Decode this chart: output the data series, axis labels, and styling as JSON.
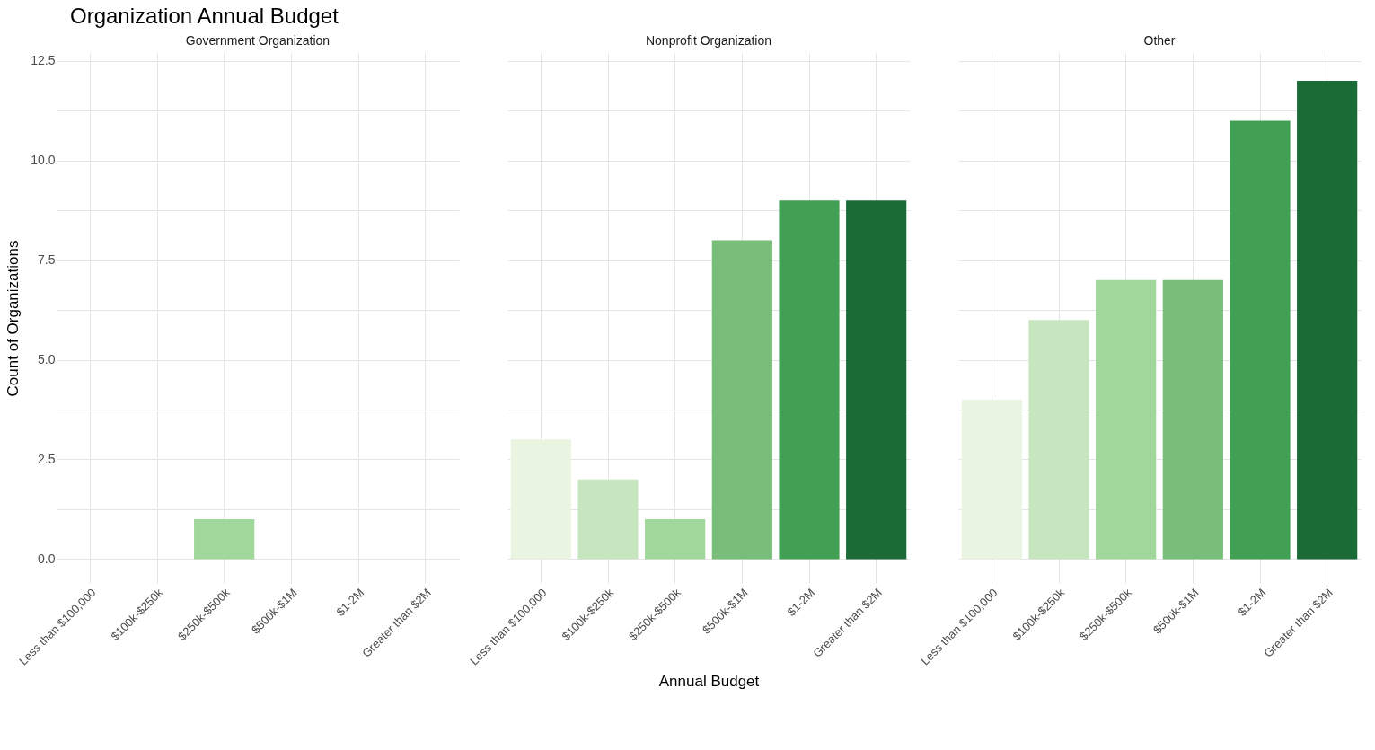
{
  "chart_data": [
    {
      "type": "bar",
      "title": "Organization Annual Budget",
      "subtitle": "Government Organization",
      "ylabel": "Count of Organizations",
      "categories": [
        "Less than $100,000",
        "$100k-$250k",
        "$250k-$500k",
        "$500k-$1M",
        "$1-2M",
        "Greater than $2M"
      ],
      "values": [
        null,
        null,
        1,
        null,
        null,
        null
      ],
      "colors": [
        "#e9f5e1",
        "#c7e6bf",
        "#a0d79a",
        "#78be78",
        "#42a055",
        "#1b6b36"
      ],
      "ylim": [
        -0.6,
        12.7
      ],
      "yticks": [
        {
          "value": 0,
          "label": "0.0"
        },
        {
          "value": 1.25,
          "label": null
        },
        2.5,
        {
          "value": 3.75,
          "label": null
        },
        {
          "value": 5,
          "label": "5.0"
        },
        {
          "value": 6.25,
          "label": null
        },
        7.5,
        {
          "value": 8.75,
          "label": null
        },
        {
          "value": 10,
          "label": "10.0"
        },
        {
          "value": 11.25,
          "label": null
        },
        12.5
      ],
      "grid": true
    },
    {
      "type": "bar",
      "subtitle": "Nonprofit Organization",
      "xlabel": "Annual Budget",
      "categories": [
        "Less than $100,000",
        "$100k-$250k",
        "$250k-$500k",
        "$500k-$1M",
        "$1-2M",
        "Greater than $2M"
      ],
      "values": [
        3,
        2,
        1,
        8,
        9,
        9
      ],
      "colors": [
        "#e9f5e1",
        "#c7e6bf",
        "#a0d79a",
        "#78be78",
        "#42a055",
        "#1b6b36"
      ],
      "ylim": [
        -0.6,
        12.7
      ],
      "yticks": [
        0,
        1.25,
        2.5,
        3.75,
        5,
        6.25,
        7.5,
        8.75,
        10,
        11.25,
        12.5
      ],
      "grid": true,
      "tick_labels": "x"
    },
    {
      "type": "bar",
      "subtitle": "Other",
      "categories": [
        "Less than $100,000",
        "$100k-$250k",
        "$250k-$500k",
        "$500k-$1M",
        "$1-2M",
        "Greater than $2M"
      ],
      "values": [
        4,
        6,
        7,
        7,
        11,
        12
      ],
      "colors": [
        "#e9f5e1",
        "#c7e6bf",
        "#a0d79a",
        "#78be78",
        "#42a055",
        "#1b6b36"
      ],
      "ylim": [
        -0.6,
        12.7
      ],
      "yticks": [
        0,
        1.25,
        2.5,
        3.75,
        5,
        6.25,
        7.5,
        8.75,
        10,
        11.25,
        12.5
      ],
      "grid": true,
      "tick_labels": "x"
    }
  ]
}
